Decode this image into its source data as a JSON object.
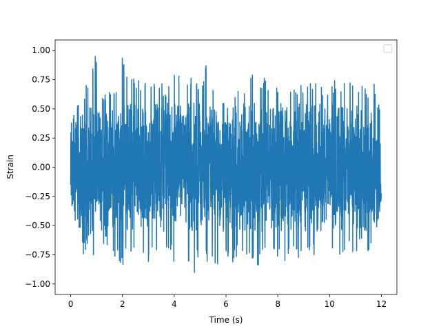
{
  "chart_data": {
    "type": "line",
    "title": "",
    "xlabel": "Time (s)",
    "ylabel": "Strain",
    "xlim": [
      -0.6,
      12.6
    ],
    "ylim": [
      -1.09,
      1.09
    ],
    "xticks": [
      0,
      2,
      4,
      6,
      8,
      10,
      12
    ],
    "xtick_labels": [
      "0",
      "2",
      "4",
      "6",
      "8",
      "10",
      "12"
    ],
    "yticks": [
      -1.0,
      -0.75,
      -0.5,
      -0.25,
      0.0,
      0.25,
      0.5,
      0.75,
      1.0
    ],
    "ytick_labels": [
      "−1.00",
      "−0.75",
      "−0.50",
      "−0.25",
      "0.00",
      "0.25",
      "0.50",
      "0.75",
      "1.00"
    ],
    "grid": false,
    "legend": {
      "placement": "top-right",
      "entries": []
    },
    "series": [
      {
        "color": "#1f77b4",
        "x_range": [
          0,
          12
        ],
        "description": "dense noise-like strain signal, mostly within ±0.6 with spikes",
        "envelope_upper": [
          0.4,
          0.55,
          0.65,
          0.82,
          1.0,
          0.63,
          0.74,
          0.64,
          1.0,
          0.76,
          0.81,
          0.69,
          0.86,
          0.71,
          0.72,
          0.69,
          0.88,
          0.76,
          0.73,
          0.86,
          0.66,
          0.91,
          0.69,
          0.69,
          0.78,
          0.63,
          0.66,
          0.75,
          0.81,
          0.7,
          0.8,
          0.66,
          0.7,
          0.79,
          0.72,
          0.67,
          0.74,
          0.72,
          0.81,
          0.66,
          0.71,
          0.76,
          0.72,
          0.79,
          0.68,
          0.8,
          0.68,
          0.74,
          0.4
        ],
        "envelope_lower": [
          -0.27,
          -0.57,
          -0.75,
          -0.63,
          -0.91,
          -0.66,
          -0.72,
          -0.78,
          -0.91,
          -0.72,
          -0.78,
          -0.74,
          -0.81,
          -0.77,
          -0.77,
          -0.7,
          -0.84,
          -0.82,
          -0.8,
          -0.96,
          -0.72,
          -0.83,
          -0.76,
          -0.99,
          -0.75,
          -0.86,
          -0.73,
          -0.76,
          -0.88,
          -0.84,
          -0.73,
          -0.78,
          -0.79,
          -0.85,
          -0.71,
          -0.76,
          -0.85,
          -0.73,
          -0.78,
          -0.74,
          -0.77,
          -0.72,
          -0.78,
          -0.7,
          -0.79,
          -0.66,
          -0.74,
          -0.72,
          -0.26
        ]
      }
    ]
  }
}
